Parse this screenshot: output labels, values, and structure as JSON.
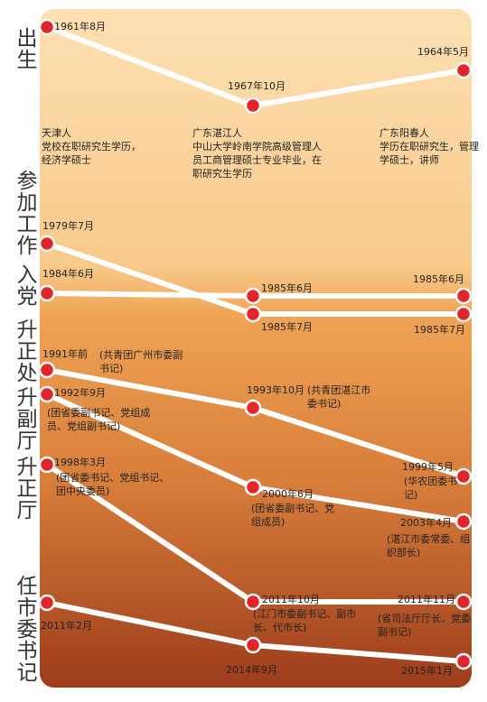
{
  "rows": [
    {
      "label": "出生",
      "points": [
        {
          "date": "1961年8月"
        },
        {
          "date": "1967年10月"
        },
        {
          "date": "1964年5月"
        }
      ]
    },
    {
      "label": "参加工作",
      "points": [
        {
          "date": "1979年7月"
        },
        {
          "date": "1985年7月"
        },
        {
          "date": "1985年7月"
        }
      ]
    },
    {
      "label": "入党",
      "points": [
        {
          "date": "1984年6月"
        },
        {
          "date": "1985年6月"
        },
        {
          "date": "1985年6月"
        }
      ]
    },
    {
      "label": "升正处",
      "points": [
        {
          "date": "1991年前",
          "note": "(共青团广州市委副书记)"
        },
        {
          "date": "1993年10月",
          "note": "(共青团湛江市委书记)"
        },
        {
          "date": "1999年5月",
          "note": "(华农团委书记)"
        }
      ]
    },
    {
      "label": "升副厅",
      "points": [
        {
          "date": "1992年9月",
          "note": "(团省委副书记、党组成员、党组副书记)"
        },
        {
          "date": "2000年6月",
          "note": "(团省委副书记、党组成员)"
        },
        {
          "date": "2003年4月",
          "note": "(湛江市委常委、组织部长)"
        }
      ]
    },
    {
      "label": "升正厅",
      "points": [
        {
          "date": "1998年3月",
          "note": "(团省委书记、党组书记、团中央委员)"
        },
        {
          "date": "2011年10月",
          "note": "(江门市委副书记、副市长、代市长)"
        },
        {
          "date": "2011年11月",
          "note": "(省司法厅厅长、党委副书记)"
        }
      ]
    },
    {
      "label": "任市委书记",
      "points": [
        {
          "date": "2011年2月"
        },
        {
          "date": "2014年9月"
        },
        {
          "date": "2015年1月"
        }
      ]
    }
  ],
  "bios": [
    "天津人\n党校在职研究生学历，经济学硕士",
    "广东湛江人\n中山大学岭南学院高级管理人员工商管理硕士专业毕业，在职研究生学历",
    "广东阳春人\n学历在职研究生，管理学硕士，讲师"
  ]
}
